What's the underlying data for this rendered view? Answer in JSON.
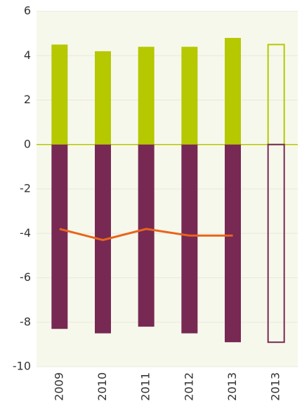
{
  "chart_data": {
    "type": "bar",
    "categories": [
      "2009",
      "2010",
      "2011",
      "2012",
      "2013",
      "2013"
    ],
    "series": [
      {
        "type": "bar",
        "color": "#b5c800",
        "values": [
          4.5,
          4.2,
          4.4,
          4.4,
          4.8,
          4.5
        ],
        "outlined": [
          false,
          false,
          false,
          false,
          false,
          true
        ]
      },
      {
        "type": "bar",
        "color": "#772953",
        "values": [
          -8.3,
          -8.5,
          -8.2,
          -8.5,
          -8.9,
          -8.9
        ],
        "outlined": [
          false,
          false,
          false,
          false,
          false,
          true
        ]
      },
      {
        "type": "line",
        "color": "#e8641b",
        "values": [
          -3.8,
          -4.3,
          -3.8,
          -4.1,
          -4.1,
          null
        ]
      }
    ],
    "ylim": [
      -10,
      6
    ],
    "yticks": [
      -10,
      -8,
      -6,
      -4,
      -2,
      0,
      2,
      4,
      6
    ],
    "grid": true,
    "zero_line_color": "#b5c800"
  }
}
